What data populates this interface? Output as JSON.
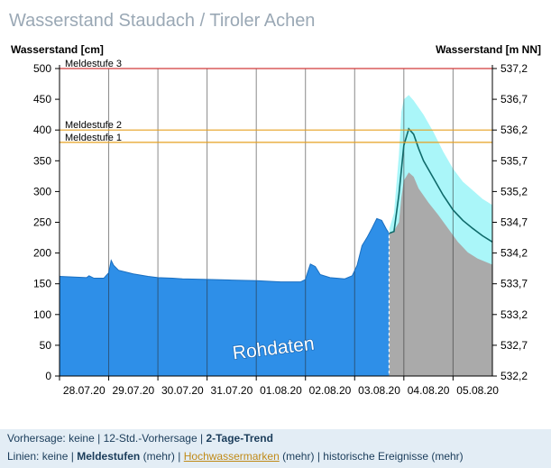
{
  "title": "Wasserstand Staudach / Tiroler Achen",
  "chart_data": {
    "type": "area",
    "left_axis_label": "Wasserstand [cm]",
    "right_axis_label": "Wasserstand [m NN]",
    "y_ticks_left": [
      "0",
      "50",
      "100",
      "150",
      "200",
      "250",
      "300",
      "350",
      "400",
      "450",
      "500"
    ],
    "y_ticks_right": [
      "532,2",
      "532,7",
      "533,2",
      "533,7",
      "534,2",
      "534,7",
      "535,2",
      "535,7",
      "536,2",
      "536,7",
      "537,2"
    ],
    "ylim": [
      0,
      500
    ],
    "x_ticks": [
      "28.07.20",
      "29.07.20",
      "30.07.20",
      "31.07.20",
      "01.08.20",
      "02.08.20",
      "03.08.20",
      "04.08.20",
      "05.08.20"
    ],
    "xlim_days": [
      0,
      8.8
    ],
    "now_day": 6.7,
    "watermark": "Rohdaten",
    "colors": {
      "measured": "#2e8fe8",
      "forecast_band": "#aaf6f9",
      "forecast_line": "#0f6a6a",
      "forecast_lower": "#aaaaaa",
      "meldestufe_3": "#d23a3a",
      "meldestufe_1_2": "#e6a020"
    },
    "thresholds": [
      {
        "label": "Meldestufe 3",
        "value": 500
      },
      {
        "label": "Meldestufe 2",
        "value": 400
      },
      {
        "label": "Meldestufe 1",
        "value": 380
      }
    ],
    "series": [
      {
        "type": "measured",
        "x": [
          0,
          0.3,
          0.55,
          0.6,
          0.7,
          0.9,
          1.0,
          1.05,
          1.1,
          1.2,
          1.35,
          1.5,
          1.8,
          2.0,
          2.3,
          2.5,
          3.0,
          3.5,
          4.0,
          4.5,
          4.9,
          5.0,
          5.05,
          5.1,
          5.2,
          5.3,
          5.5,
          5.8,
          5.95,
          6.05,
          6.15,
          6.25,
          6.35,
          6.45,
          6.55,
          6.65,
          6.7
        ],
        "y": [
          162,
          161,
          160,
          163,
          159,
          159,
          168,
          188,
          180,
          172,
          169,
          166,
          162,
          160,
          159,
          158,
          157,
          156,
          155,
          153,
          153,
          157,
          170,
          182,
          178,
          165,
          160,
          158,
          163,
          180,
          212,
          225,
          240,
          256,
          253,
          238,
          232
        ]
      },
      {
        "type": "forecast_upper",
        "x": [
          6.7,
          6.8,
          6.9,
          6.95,
          7.0,
          7.1,
          7.2,
          7.4,
          7.6,
          7.8,
          8.0,
          8.2,
          8.4,
          8.6,
          8.8
        ],
        "y": [
          238,
          265,
          360,
          430,
          450,
          457,
          448,
          425,
          397,
          365,
          337,
          316,
          302,
          288,
          278
        ]
      },
      {
        "type": "forecast_median",
        "x": [
          6.7,
          6.8,
          6.9,
          7.0,
          7.1,
          7.2,
          7.3,
          7.4,
          7.6,
          7.8,
          8.0,
          8.2,
          8.4,
          8.6,
          8.8
        ],
        "y": [
          232,
          235,
          295,
          375,
          402,
          393,
          370,
          350,
          322,
          294,
          270,
          253,
          240,
          228,
          218
        ]
      },
      {
        "type": "forecast_lower",
        "x": [
          6.7,
          6.8,
          6.9,
          6.95,
          7.0,
          7.1,
          7.2,
          7.3,
          7.5,
          7.7,
          7.9,
          8.1,
          8.3,
          8.5,
          8.8
        ],
        "y": [
          232,
          236,
          250,
          290,
          318,
          331,
          324,
          305,
          282,
          262,
          240,
          218,
          201,
          191,
          181
        ]
      }
    ]
  },
  "footer": {
    "vorhersage_label": "Vorhersage:",
    "vorhersage_opts": [
      "keine",
      "12-Std.-Vorhersage",
      "2-Tage-Trend"
    ],
    "linien_label": "Linien:",
    "linien_keine": "keine",
    "linien_meldestufen": "Meldestufen",
    "mehr": "(mehr)",
    "linien_hwm": "Hochwassermarken",
    "linien_hist": "historische Ereignisse",
    "sep": "|"
  }
}
